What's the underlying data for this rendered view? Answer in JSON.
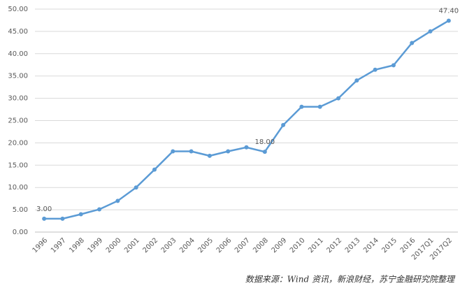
{
  "chart_data": {
    "type": "line",
    "categories": [
      "1996",
      "1997",
      "1998",
      "1999",
      "2000",
      "2001",
      "2002",
      "2003",
      "2004",
      "2005",
      "2006",
      "2007",
      "2008",
      "2009",
      "2010",
      "2011",
      "2012",
      "2013",
      "2014",
      "2015",
      "2016",
      "2017Q1",
      "2017Q2"
    ],
    "series": [
      {
        "color": "#5b9bd5",
        "values": [
          3.0,
          3.0,
          4.0,
          5.1,
          7.0,
          10.0,
          14.0,
          18.1,
          18.1,
          17.1,
          18.1,
          19.0,
          18.0,
          24.0,
          28.1,
          28.1,
          30.0,
          34.0,
          36.4,
          37.4,
          42.4,
          45.0,
          47.4
        ],
        "value_labels": [
          "3.00",
          null,
          null,
          null,
          null,
          null,
          null,
          null,
          null,
          null,
          null,
          null,
          "18.00",
          null,
          null,
          null,
          null,
          null,
          null,
          null,
          null,
          null,
          "47.40"
        ]
      }
    ],
    "ylim": [
      0,
      50
    ],
    "yticks": [
      {
        "value": 0,
        "label": "0.00"
      },
      {
        "value": 5,
        "label": "5.00"
      },
      {
        "value": 10,
        "label": "10.00"
      },
      {
        "value": 15,
        "label": "15.00"
      },
      {
        "value": 20,
        "label": "20.00"
      },
      {
        "value": 25,
        "label": "25.00"
      },
      {
        "value": 30,
        "label": "30.00"
      },
      {
        "value": 35,
        "label": "35.00"
      },
      {
        "value": 40,
        "label": "40.00"
      },
      {
        "value": 45,
        "label": "45.00"
      },
      {
        "value": 50,
        "label": "50.00"
      }
    ],
    "grid": true,
    "source": "数据来源：Wind 资讯，新浪财经，苏宁金融研究院整理"
  }
}
